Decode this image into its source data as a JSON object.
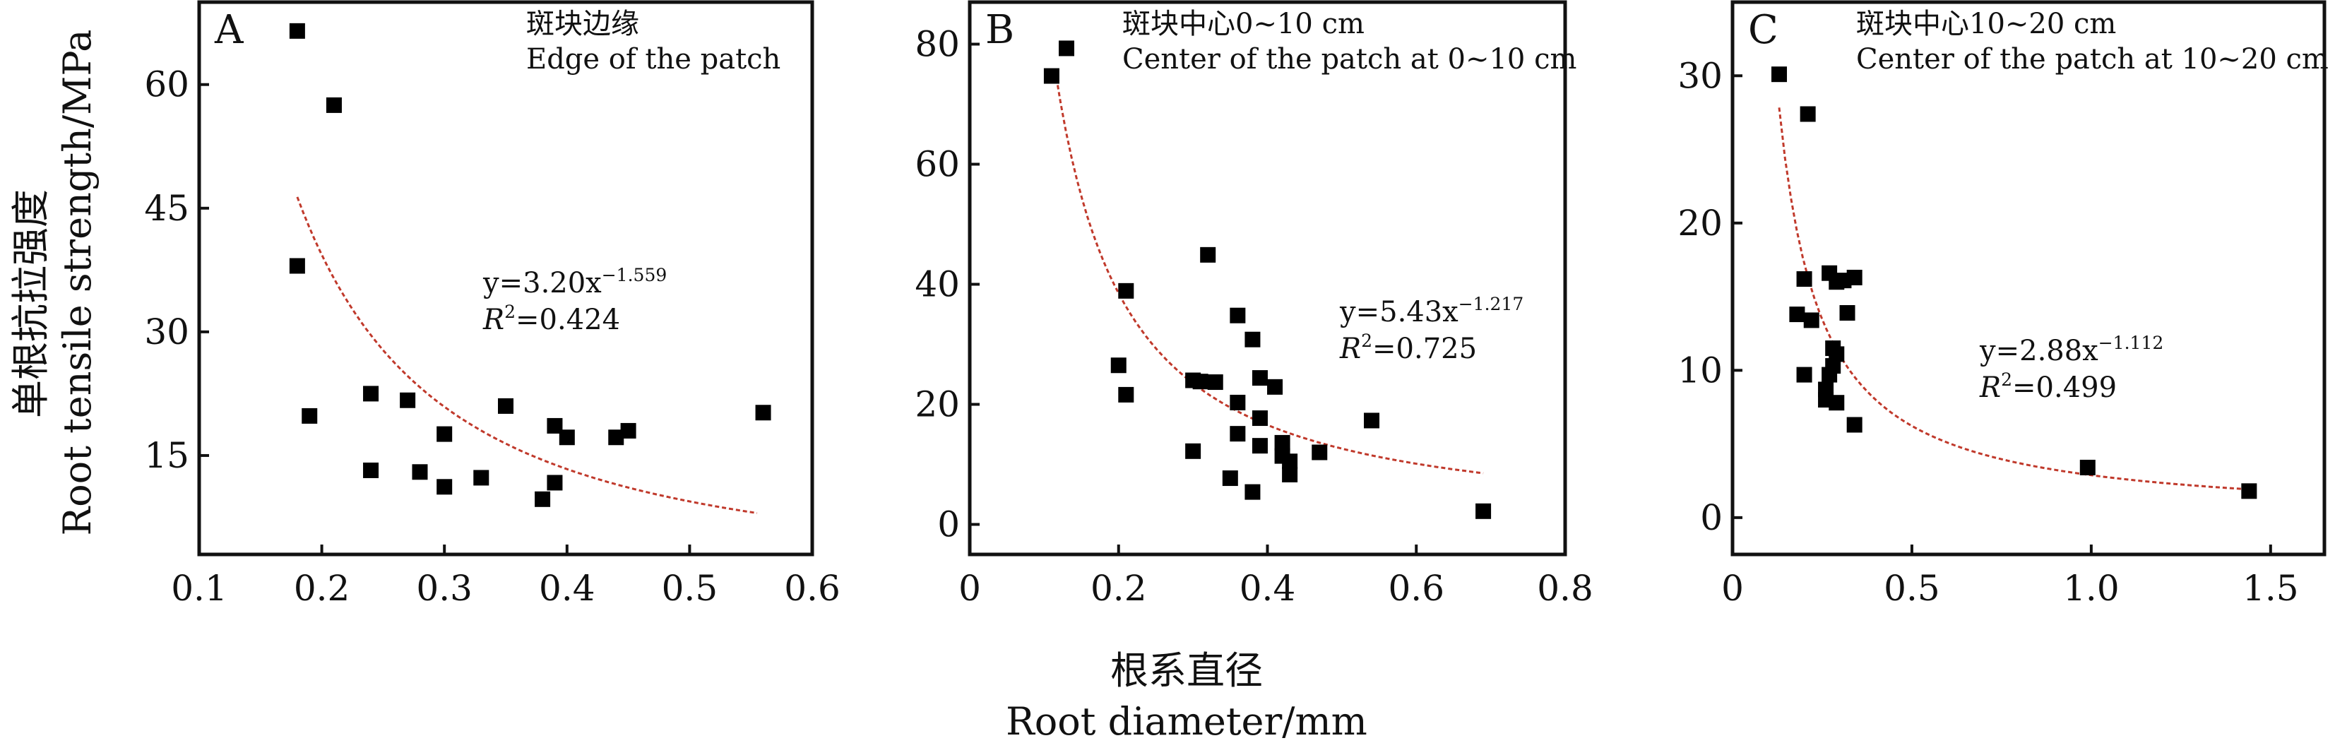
{
  "colors": {
    "axis": "#111111",
    "marker": "#000000",
    "fit_line": "#c0392b",
    "background": "#ffffff"
  },
  "figure": {
    "ylabel_cn": "单根抗拉强度",
    "ylabel_en": "Root tensile strength/MPa",
    "xlabel_cn": "根系直径",
    "xlabel_en": "Root diameter/mm"
  },
  "chart_data": [
    {
      "type": "scatter",
      "panel": "A",
      "title_cn": "斑块边缘",
      "title_en": "Edge of the patch",
      "xlim": [
        0.1,
        0.6
      ],
      "ylim": [
        3,
        70
      ],
      "xticks": [
        0.1,
        0.2,
        0.3,
        0.4,
        0.5,
        0.6
      ],
      "xtick_labels": [
        "0.1",
        "0.2",
        "0.3",
        "0.4",
        "0.5",
        "0.6"
      ],
      "yticks": [
        15,
        30,
        45,
        60
      ],
      "ytick_labels": [
        "15",
        "30",
        "45",
        "60"
      ],
      "points": [
        [
          0.18,
          66.5
        ],
        [
          0.21,
          57.5
        ],
        [
          0.18,
          38.0
        ],
        [
          0.19,
          19.8
        ],
        [
          0.24,
          22.5
        ],
        [
          0.27,
          21.7
        ],
        [
          0.24,
          13.2
        ],
        [
          0.28,
          13.0
        ],
        [
          0.3,
          17.6
        ],
        [
          0.3,
          11.2
        ],
        [
          0.33,
          12.3
        ],
        [
          0.35,
          21.0
        ],
        [
          0.38,
          9.7
        ],
        [
          0.39,
          18.6
        ],
        [
          0.39,
          11.7
        ],
        [
          0.4,
          17.2
        ],
        [
          0.44,
          17.2
        ],
        [
          0.45,
          18.0
        ],
        [
          0.56,
          20.2
        ]
      ],
      "fit": {
        "a": 3.2,
        "b": -1.559,
        "x_range": [
          0.18,
          0.555
        ]
      },
      "equation_main": "y=3.20x",
      "equation_exp": "−1.559",
      "r2_value": "=0.424"
    },
    {
      "type": "scatter",
      "panel": "B",
      "title_cn": "斑块中心0~10 cm",
      "title_en": "Center of the patch at 0~10 cm",
      "xlim": [
        0,
        0.8
      ],
      "ylim": [
        -5,
        87
      ],
      "xticks": [
        0,
        0.2,
        0.4,
        0.6,
        0.8
      ],
      "xtick_labels": [
        "0",
        "0.2",
        "0.4",
        "0.6",
        "0.8"
      ],
      "yticks": [
        0,
        20,
        40,
        60,
        80
      ],
      "ytick_labels": [
        "0",
        "20",
        "40",
        "60",
        "80"
      ],
      "points": [
        [
          0.11,
          74.7
        ],
        [
          0.13,
          79.3
        ],
        [
          0.21,
          38.9
        ],
        [
          0.2,
          26.5
        ],
        [
          0.21,
          21.6
        ],
        [
          0.3,
          24.0
        ],
        [
          0.31,
          23.8
        ],
        [
          0.32,
          44.9
        ],
        [
          0.33,
          23.7
        ],
        [
          0.36,
          34.8
        ],
        [
          0.38,
          30.8
        ],
        [
          0.36,
          20.3
        ],
        [
          0.36,
          15.1
        ],
        [
          0.35,
          7.7
        ],
        [
          0.38,
          5.4
        ],
        [
          0.3,
          12.2
        ],
        [
          0.39,
          24.4
        ],
        [
          0.39,
          17.7
        ],
        [
          0.39,
          13.1
        ],
        [
          0.41,
          22.9
        ],
        [
          0.42,
          13.6
        ],
        [
          0.42,
          11.4
        ],
        [
          0.43,
          10.5
        ],
        [
          0.43,
          8.3
        ],
        [
          0.47,
          12.0
        ],
        [
          0.54,
          17.3
        ],
        [
          0.69,
          2.2
        ]
      ],
      "fit": {
        "a": 5.43,
        "b": -1.217,
        "x_range": [
          0.115,
          0.69
        ]
      },
      "equation_main": "y=5.43x",
      "equation_exp": "−1.217",
      "r2_value": "=0.725"
    },
    {
      "type": "scatter",
      "panel": "C",
      "title_cn": "斑块中心10~20 cm",
      "title_en": "Center of the patch at 10~20 cm",
      "xlim": [
        0,
        1.65
      ],
      "ylim": [
        -2.5,
        35
      ],
      "xticks": [
        0,
        0.5,
        1.0,
        1.5
      ],
      "xtick_labels": [
        "0",
        "0.5",
        "1.0",
        "1.5"
      ],
      "yticks": [
        0,
        10,
        20,
        30
      ],
      "ytick_labels": [
        "0",
        "10",
        "20",
        "30"
      ],
      "points": [
        [
          0.13,
          30.1
        ],
        [
          0.21,
          27.4
        ],
        [
          0.2,
          16.2
        ],
        [
          0.18,
          13.8
        ],
        [
          0.22,
          13.4
        ],
        [
          0.2,
          9.7
        ],
        [
          0.27,
          16.6
        ],
        [
          0.29,
          16.0
        ],
        [
          0.31,
          16.1
        ],
        [
          0.34,
          16.3
        ],
        [
          0.32,
          13.9
        ],
        [
          0.28,
          11.5
        ],
        [
          0.29,
          11.1
        ],
        [
          0.28,
          10.3
        ],
        [
          0.27,
          9.7
        ],
        [
          0.26,
          8.7
        ],
        [
          0.26,
          8.0
        ],
        [
          0.29,
          7.8
        ],
        [
          0.34,
          6.3
        ],
        [
          0.99,
          3.4
        ],
        [
          1.44,
          1.8
        ]
      ],
      "fit": {
        "a": 2.88,
        "b": -1.112,
        "x_range": [
          0.13,
          1.44
        ]
      },
      "equation_main": "y=2.88x",
      "equation_exp": "−1.112",
      "r2_value": "=0.499"
    }
  ]
}
